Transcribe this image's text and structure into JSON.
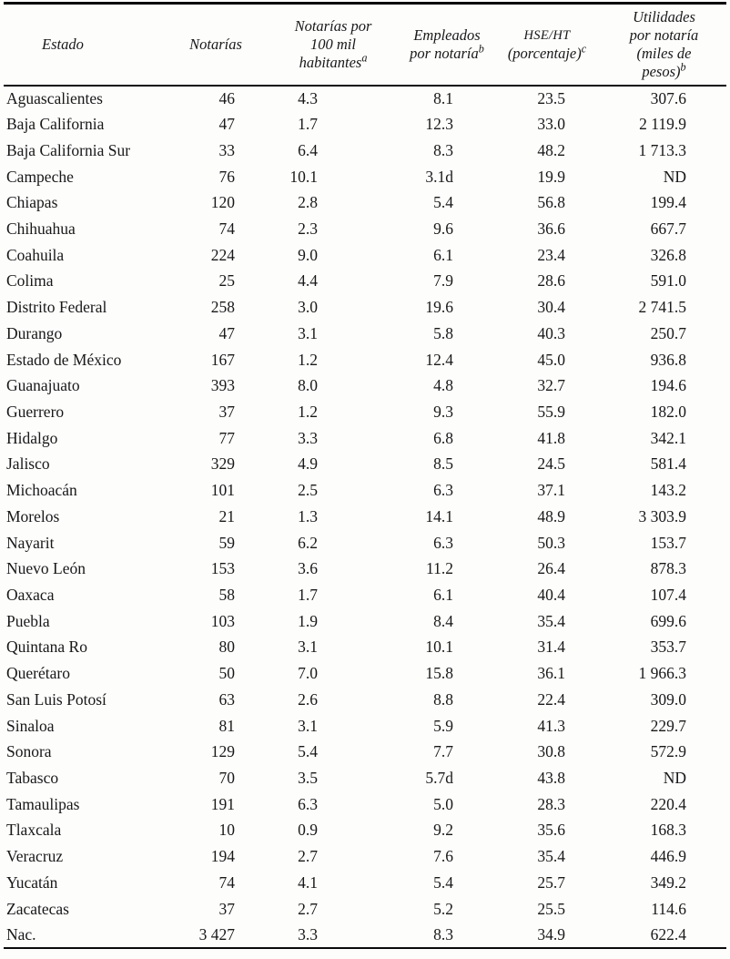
{
  "table": {
    "columns": [
      {
        "id": "estado",
        "lines": [
          "Estado"
        ],
        "sup": ""
      },
      {
        "id": "notarias",
        "lines": [
          "Notarías"
        ],
        "sup": ""
      },
      {
        "id": "notarias-100k",
        "lines": [
          "Notarías por",
          "100 mil",
          "habitantes"
        ],
        "sup": "a"
      },
      {
        "id": "empleados",
        "lines": [
          "Empleados",
          "por notaría"
        ],
        "sup": "b"
      },
      {
        "id": "hse-ht",
        "lines": [
          "HSE/HT",
          "(porcentaje)"
        ],
        "sup": "c"
      },
      {
        "id": "utilidades",
        "lines": [
          "Utilidades",
          "por notaría",
          "(miles de",
          "pesos)"
        ],
        "sup": "b"
      }
    ],
    "rows": [
      [
        "Aguascalientes",
        "46",
        "4.3",
        "8.1",
        "23.5",
        "307.6"
      ],
      [
        "Baja California",
        "47",
        "1.7",
        "12.3",
        "33.0",
        "2 119.9"
      ],
      [
        "Baja California Sur",
        "33",
        "6.4",
        "8.3",
        "48.2",
        "1 713.3"
      ],
      [
        "Campeche",
        "76",
        "10.1",
        "3.1d",
        "19.9",
        "ND"
      ],
      [
        "Chiapas",
        "120",
        "2.8",
        "5.4",
        "56.8",
        "199.4"
      ],
      [
        "Chihuahua",
        "74",
        "2.3",
        "9.6",
        "36.6",
        "667.7"
      ],
      [
        "Coahuila",
        "224",
        "9.0",
        "6.1",
        "23.4",
        "326.8"
      ],
      [
        "Colima",
        "25",
        "4.4",
        "7.9",
        "28.6",
        "591.0"
      ],
      [
        "Distrito Federal",
        "258",
        "3.0",
        "19.6",
        "30.4",
        "2 741.5"
      ],
      [
        "Durango",
        "47",
        "3.1",
        "5.8",
        "40.3",
        "250.7"
      ],
      [
        "Estado de México",
        "167",
        "1.2",
        "12.4",
        "45.0",
        "936.8"
      ],
      [
        "Guanajuato",
        "393",
        "8.0",
        "4.8",
        "32.7",
        "194.6"
      ],
      [
        "Guerrero",
        "37",
        "1.2",
        "9.3",
        "55.9",
        "182.0"
      ],
      [
        "Hidalgo",
        "77",
        "3.3",
        "6.8",
        "41.8",
        "342.1"
      ],
      [
        "Jalisco",
        "329",
        "4.9",
        "8.5",
        "24.5",
        "581.4"
      ],
      [
        "Michoacán",
        "101",
        "2.5",
        "6.3",
        "37.1",
        "143.2"
      ],
      [
        "Morelos",
        "21",
        "1.3",
        "14.1",
        "48.9",
        "3 303.9"
      ],
      [
        "Nayarit",
        "59",
        "6.2",
        "6.3",
        "50.3",
        "153.7"
      ],
      [
        "Nuevo León",
        "153",
        "3.6",
        "11.2",
        "26.4",
        "878.3"
      ],
      [
        "Oaxaca",
        "58",
        "1.7",
        "6.1",
        "40.4",
        "107.4"
      ],
      [
        "Puebla",
        "103",
        "1.9",
        "8.4",
        "35.4",
        "699.6"
      ],
      [
        "Quintana Ro",
        "80",
        "3.1",
        "10.1",
        "31.4",
        "353.7"
      ],
      [
        "Querétaro",
        "50",
        "7.0",
        "15.8",
        "36.1",
        "1 966.3"
      ],
      [
        "San Luis Potosí",
        "63",
        "2.6",
        "8.8",
        "22.4",
        "309.0"
      ],
      [
        "Sinaloa",
        "81",
        "3.1",
        "5.9",
        "41.3",
        "229.7"
      ],
      [
        "Sonora",
        "129",
        "5.4",
        "7.7",
        "30.8",
        "572.9"
      ],
      [
        "Tabasco",
        "70",
        "3.5",
        "5.7d",
        "43.8",
        "ND"
      ],
      [
        "Tamaulipas",
        "191",
        "6.3",
        "5.0",
        "28.3",
        "220.4"
      ],
      [
        "Tlaxcala",
        "10",
        "0.9",
        "9.2",
        "35.6",
        "168.3"
      ],
      [
        "Veracruz",
        "194",
        "2.7",
        "7.6",
        "35.4",
        "446.9"
      ],
      [
        "Yucatán",
        "74",
        "4.1",
        "5.4",
        "25.7",
        "349.2"
      ],
      [
        "Zacatecas",
        "37",
        "2.7",
        "5.2",
        "25.5",
        "114.6"
      ],
      [
        "Nac.",
        "3 427",
        "3.3",
        "8.3",
        "34.9",
        "622.4"
      ]
    ]
  }
}
